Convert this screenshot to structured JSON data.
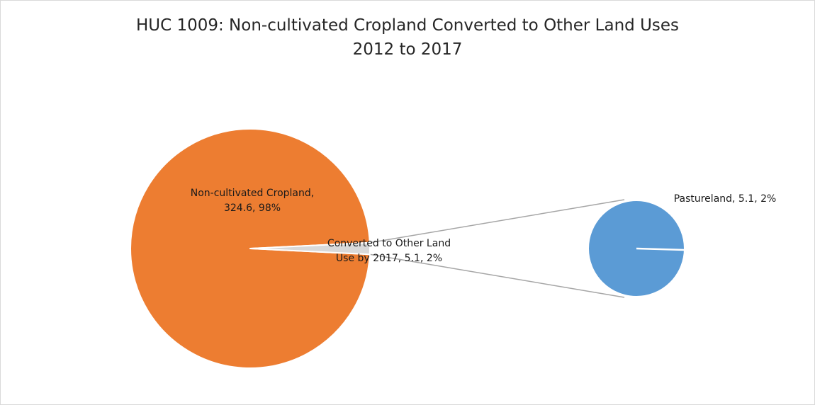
{
  "chart_data": {
    "type": "pie",
    "subtype": "bar-of-pie",
    "title": "HUC 1009: Non-cultivated Cropland Converted to Other Land Uses",
    "subtitle": "2012 to 2017",
    "primary": {
      "slices": [
        {
          "name": "Non-cultivated Cropland",
          "value": 324.6,
          "percent": 98,
          "color": "#ED7D31",
          "label_lines": [
            "Non-cultivated Cropland,",
            "324.6, 98%"
          ]
        },
        {
          "name": "Converted to Other Land Use by 2017",
          "value": 5.1,
          "percent": 2,
          "color": "#D9D9D9",
          "label_lines": [
            "Converted to Other Land",
            "Use by 2017, 5.1, 2%"
          ]
        }
      ]
    },
    "secondary": {
      "of_slice": "Converted to Other Land Use by 2017",
      "slices": [
        {
          "name": "Pastureland",
          "value": 5.1,
          "percent": 2,
          "color": "#5B9BD5",
          "label_lines": [
            "Pastureland, 5.1, 2%"
          ]
        }
      ]
    },
    "connector_color": "#A6A6A6",
    "legend": "none",
    "grid": false
  }
}
